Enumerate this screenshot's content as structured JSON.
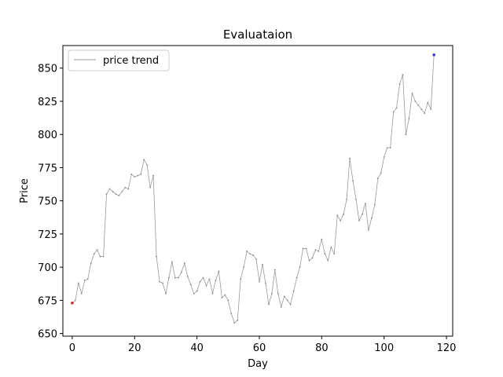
{
  "chart_data": {
    "type": "line",
    "title": "Evaluataion",
    "xlabel": "Day",
    "ylabel": "Price",
    "xlim": [
      -3,
      122
    ],
    "ylim": [
      648,
      867
    ],
    "xticks": [
      0,
      20,
      40,
      60,
      80,
      100,
      120
    ],
    "yticks": [
      650,
      675,
      700,
      725,
      750,
      775,
      800,
      825,
      850
    ],
    "grid": false,
    "legend_position": "top-left",
    "series": [
      {
        "name": "price trend",
        "color": "#999999",
        "x": [
          0,
          1,
          2,
          3,
          4,
          5,
          6,
          7,
          8,
          9,
          10,
          11,
          12,
          13,
          14,
          15,
          16,
          17,
          18,
          19,
          20,
          21,
          22,
          23,
          24,
          25,
          26,
          27,
          28,
          29,
          30,
          31,
          32,
          33,
          34,
          35,
          36,
          37,
          38,
          39,
          40,
          41,
          42,
          43,
          44,
          45,
          46,
          47,
          48,
          49,
          50,
          51,
          52,
          53,
          54,
          55,
          56,
          57,
          58,
          59,
          60,
          61,
          62,
          63,
          64,
          65,
          66,
          67,
          68,
          69,
          70,
          71,
          72,
          73,
          74,
          75,
          76,
          77,
          78,
          79,
          80,
          81,
          82,
          83,
          84,
          85,
          86,
          87,
          88,
          89,
          90,
          91,
          92,
          93,
          94,
          95,
          96,
          97,
          98,
          99,
          100,
          101,
          102,
          103,
          104,
          105,
          106,
          107,
          108,
          109,
          110,
          111,
          112,
          113,
          114,
          115,
          116
        ],
        "y": [
          673,
          675,
          688,
          680,
          690,
          691,
          703,
          710,
          713,
          708,
          708,
          755,
          759,
          757,
          755,
          754,
          757,
          760,
          759,
          770,
          768,
          769,
          770,
          781,
          777,
          760,
          769,
          708,
          689,
          688,
          680,
          692,
          704,
          692,
          692,
          696,
          703,
          693,
          687,
          680,
          682,
          689,
          692,
          686,
          691,
          680,
          690,
          697,
          677,
          679,
          675,
          665,
          658,
          660,
          691,
          700,
          712,
          710,
          709,
          706,
          689,
          702,
          688,
          672,
          680,
          698,
          680,
          670,
          678,
          675,
          672,
          682,
          692,
          700,
          714,
          714,
          705,
          707,
          713,
          712,
          721,
          710,
          705,
          715,
          710,
          739,
          735,
          740,
          751,
          782,
          765,
          751,
          735,
          740,
          748,
          728,
          737,
          747,
          767,
          771,
          783,
          790,
          790,
          817,
          820,
          838,
          845,
          800,
          812,
          831,
          825,
          822,
          819,
          816,
          824,
          819,
          860
        ]
      }
    ],
    "start_point": {
      "x": 0,
      "y": 673,
      "color": "#d62728"
    },
    "end_point": {
      "x": 116,
      "y": 860,
      "color": "#3f3fbf"
    }
  }
}
